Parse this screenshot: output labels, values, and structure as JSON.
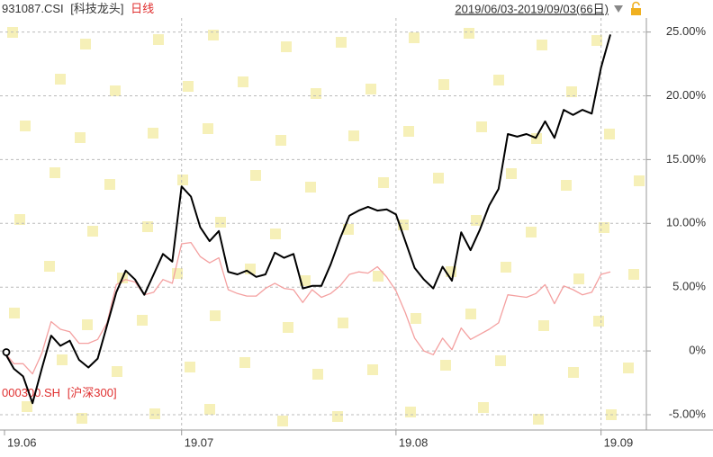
{
  "chart_data": {
    "type": "line",
    "period": "日线",
    "date_range": "2019/06/03-2019/09/03(66日)",
    "categories": [
      "19.06",
      null,
      null,
      null,
      null,
      null,
      null,
      null,
      null,
      null,
      null,
      null,
      null,
      null,
      null,
      null,
      null,
      null,
      null,
      "19.07",
      null,
      null,
      null,
      null,
      null,
      null,
      null,
      null,
      null,
      null,
      null,
      null,
      null,
      null,
      null,
      null,
      null,
      null,
      null,
      null,
      null,
      null,
      "19.08",
      null,
      null,
      null,
      null,
      null,
      null,
      null,
      null,
      null,
      null,
      null,
      null,
      null,
      null,
      null,
      null,
      null,
      null,
      null,
      null,
      null,
      "19.09",
      null
    ],
    "series": [
      {
        "name": "931087.CSI",
        "alias": "[科技龙头]",
        "color": "#000000",
        "values": [
          -0.1,
          -1.4,
          -2.0,
          -4.1,
          -1.4,
          1.2,
          0.4,
          0.8,
          -0.7,
          -1.3,
          -0.6,
          2.0,
          4.6,
          6.3,
          5.6,
          4.4,
          6.0,
          7.6,
          7.0,
          12.9,
          12.1,
          9.7,
          8.6,
          9.4,
          6.2,
          6.0,
          6.3,
          5.8,
          6.0,
          7.7,
          7.3,
          7.6,
          4.9,
          5.1,
          5.1,
          6.8,
          8.8,
          10.6,
          11.0,
          11.3,
          11.0,
          11.1,
          10.7,
          8.6,
          6.5,
          5.6,
          4.9,
          6.6,
          5.5,
          9.3,
          7.9,
          9.5,
          11.4,
          12.7,
          17.0,
          16.8,
          17.0,
          16.7,
          18.0,
          16.7,
          18.9,
          18.5,
          18.9,
          18.6,
          22.2,
          24.8
        ]
      },
      {
        "name": "000300.SH",
        "alias": "[沪深300]",
        "color": "#f4a0a0",
        "values": [
          -0.1,
          -1.0,
          -1.0,
          -1.8,
          -0.2,
          2.3,
          1.7,
          1.5,
          0.6,
          0.6,
          0.9,
          2.2,
          5.2,
          5.6,
          5.4,
          4.4,
          4.6,
          5.6,
          5.3,
          8.4,
          8.5,
          7.4,
          6.9,
          7.3,
          4.8,
          4.5,
          4.3,
          4.3,
          4.9,
          5.3,
          4.9,
          4.8,
          3.8,
          4.8,
          4.2,
          4.5,
          5.1,
          6.0,
          6.2,
          6.1,
          6.6,
          5.8,
          4.7,
          3.0,
          1.0,
          0.0,
          -0.3,
          1.0,
          0.1,
          1.8,
          0.9,
          1.3,
          1.7,
          2.2,
          4.4,
          4.3,
          4.2,
          4.5,
          5.2,
          3.7,
          5.1,
          4.8,
          4.4,
          4.6,
          6.0,
          6.2
        ]
      }
    ],
    "ylim": [
      -6.2,
      26.1
    ],
    "yticks": [
      {
        "value": -5,
        "label": "-5.00%"
      },
      {
        "value": 0,
        "label": "0%"
      },
      {
        "value": 5,
        "label": "5.00%"
      },
      {
        "value": 10,
        "label": "10.00%"
      },
      {
        "value": 15,
        "label": "15.00%"
      },
      {
        "value": 20,
        "label": "20.00%"
      },
      {
        "value": 25,
        "label": "25.00%"
      }
    ],
    "grid": true
  }
}
